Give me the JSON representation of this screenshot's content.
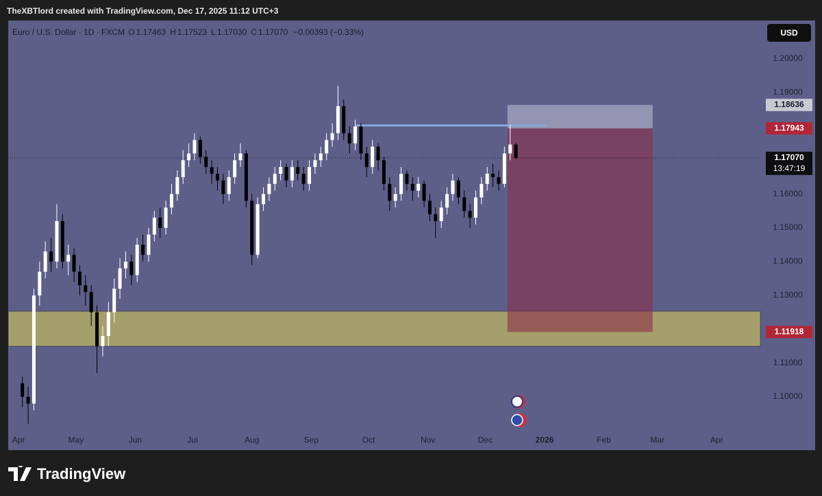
{
  "header": {
    "attribution": "TheXBTlord created with TradingView.com, Dec 17, 2025 11:12 UTC+3",
    "symbol": "Euro / U.S. Dollar · 1D · FXCM",
    "ohlc": [
      {
        "key": "O",
        "value": "1.17463"
      },
      {
        "key": "H",
        "value": "1.17523"
      },
      {
        "key": "L",
        "value": "1.17030"
      },
      {
        "key": "C",
        "value": "1.17070"
      }
    ],
    "change": "−0.00393 (−0.33%)",
    "currency": "USD"
  },
  "footer": {
    "brand": "TradingView"
  },
  "chart_data": {
    "type": "candlestick",
    "up_color": "#ffffff",
    "down_color": "#000000",
    "x": [
      2,
      5,
      8,
      11,
      14,
      17,
      20,
      23,
      26,
      29,
      32,
      35,
      38,
      41,
      44,
      47,
      50,
      53,
      56,
      59,
      62,
      65,
      68,
      71,
      74,
      77,
      80,
      83,
      86,
      89,
      92,
      95,
      98,
      101,
      104,
      107,
      110,
      113,
      116,
      119,
      122,
      125,
      128,
      131,
      134,
      137,
      140,
      143,
      146,
      149,
      152,
      155,
      158,
      161,
      164,
      167,
      170,
      173,
      176,
      179,
      182,
      185,
      188,
      191,
      194,
      197,
      200,
      203,
      206,
      209,
      212,
      215,
      218,
      221,
      224,
      227,
      230,
      233,
      236,
      239,
      242,
      245,
      248,
      251,
      254,
      257,
      260
    ],
    "open": [
      1.104,
      1.1,
      1.098,
      1.13,
      1.137,
      1.143,
      1.14,
      1.152,
      1.14,
      1.142,
      1.137,
      1.133,
      1.131,
      1.125,
      1.115,
      1.118,
      1.125,
      1.132,
      1.138,
      1.14,
      1.136,
      1.145,
      1.142,
      1.148,
      1.153,
      1.15,
      1.156,
      1.16,
      1.165,
      1.17,
      1.172,
      1.176,
      1.171,
      1.168,
      1.166,
      1.164,
      1.16,
      1.165,
      1.17,
      1.172,
      1.158,
      1.142,
      1.157,
      1.16,
      1.163,
      1.166,
      1.168,
      1.164,
      1.168,
      1.166,
      1.163,
      1.168,
      1.17,
      1.172,
      1.176,
      1.178,
      1.186,
      1.178,
      1.175,
      1.18,
      1.172,
      1.168,
      1.174,
      1.17,
      1.163,
      1.158,
      1.16,
      1.166,
      1.163,
      1.161,
      1.163,
      1.158,
      1.154,
      1.152,
      1.156,
      1.16,
      1.164,
      1.159,
      1.155,
      1.153,
      1.159,
      1.163,
      1.166,
      1.165,
      1.163,
      1.172,
      1.17463
    ],
    "high": [
      1.106,
      1.103,
      1.132,
      1.14,
      1.146,
      1.147,
      1.157,
      1.154,
      1.145,
      1.144,
      1.139,
      1.136,
      1.133,
      1.127,
      1.121,
      1.128,
      1.135,
      1.141,
      1.143,
      1.142,
      1.147,
      1.148,
      1.15,
      1.155,
      1.156,
      1.158,
      1.163,
      1.167,
      1.173,
      1.175,
      1.178,
      1.177,
      1.173,
      1.17,
      1.168,
      1.166,
      1.167,
      1.172,
      1.175,
      1.173,
      1.16,
      1.159,
      1.162,
      1.165,
      1.168,
      1.17,
      1.169,
      1.17,
      1.17,
      1.168,
      1.17,
      1.172,
      1.174,
      1.178,
      1.181,
      1.192,
      1.188,
      1.18,
      1.182,
      1.181,
      1.174,
      1.176,
      1.175,
      1.171,
      1.165,
      1.162,
      1.168,
      1.167,
      1.165,
      1.165,
      1.164,
      1.16,
      1.156,
      1.158,
      1.162,
      1.166,
      1.165,
      1.161,
      1.157,
      1.161,
      1.165,
      1.168,
      1.169,
      1.167,
      1.174,
      1.1805,
      1.17523
    ],
    "low": [
      1.097,
      1.092,
      1.096,
      1.127,
      1.135,
      1.137,
      1.138,
      1.138,
      1.136,
      1.134,
      1.13,
      1.127,
      1.121,
      1.107,
      1.112,
      1.115,
      1.122,
      1.129,
      1.135,
      1.133,
      1.134,
      1.14,
      1.14,
      1.146,
      1.147,
      1.148,
      1.154,
      1.158,
      1.163,
      1.168,
      1.17,
      1.169,
      1.166,
      1.163,
      1.161,
      1.157,
      1.158,
      1.163,
      1.168,
      1.156,
      1.139,
      1.141,
      1.155,
      1.158,
      1.161,
      1.164,
      1.162,
      1.162,
      1.164,
      1.161,
      1.161,
      1.166,
      1.168,
      1.17,
      1.174,
      1.176,
      1.176,
      1.172,
      1.173,
      1.17,
      1.165,
      1.166,
      1.167,
      1.161,
      1.155,
      1.156,
      1.158,
      1.161,
      1.158,
      1.159,
      1.156,
      1.152,
      1.147,
      1.15,
      1.154,
      1.158,
      1.157,
      1.153,
      1.15,
      1.151,
      1.157,
      1.161,
      1.162,
      1.161,
      1.162,
      1.17,
      1.1703
    ],
    "close": [
      1.1,
      1.098,
      1.13,
      1.137,
      1.143,
      1.14,
      1.152,
      1.14,
      1.142,
      1.137,
      1.133,
      1.131,
      1.125,
      1.115,
      1.118,
      1.125,
      1.132,
      1.138,
      1.14,
      1.136,
      1.145,
      1.142,
      1.148,
      1.153,
      1.15,
      1.156,
      1.16,
      1.165,
      1.17,
      1.172,
      1.176,
      1.171,
      1.168,
      1.166,
      1.164,
      1.16,
      1.165,
      1.17,
      1.172,
      1.158,
      1.142,
      1.157,
      1.16,
      1.163,
      1.166,
      1.168,
      1.164,
      1.168,
      1.166,
      1.163,
      1.168,
      1.17,
      1.172,
      1.176,
      1.178,
      1.186,
      1.178,
      1.175,
      1.18,
      1.172,
      1.168,
      1.174,
      1.17,
      1.163,
      1.158,
      1.16,
      1.166,
      1.163,
      1.161,
      1.163,
      1.158,
      1.154,
      1.152,
      1.156,
      1.16,
      1.164,
      1.159,
      1.155,
      1.153,
      1.159,
      1.163,
      1.166,
      1.165,
      1.163,
      1.172,
      1.17463,
      1.1707
    ],
    "xlim": [
      -5.4,
      387.8
    ],
    "xticks": [
      {
        "value": 0,
        "label": "Apr"
      },
      {
        "value": 30,
        "label": "May"
      },
      {
        "value": 61,
        "label": "Jun"
      },
      {
        "value": 91,
        "label": "Jul"
      },
      {
        "value": 122,
        "label": "Aug"
      },
      {
        "value": 153,
        "label": "Sep"
      },
      {
        "value": 183,
        "label": "Oct"
      },
      {
        "value": 214,
        "label": "Nov"
      },
      {
        "value": 244,
        "label": "Dec"
      },
      {
        "value": 275,
        "label": "2026"
      },
      {
        "value": 306,
        "label": "Feb"
      },
      {
        "value": 334,
        "label": "Mar"
      },
      {
        "value": 365,
        "label": "Apr"
      }
    ],
    "ylim": [
      1.08421,
      1.21134
    ],
    "yticks": [
      {
        "value": 1.1,
        "label": "1.10000"
      },
      {
        "value": 1.11,
        "label": "1.11000"
      },
      {
        "value": 1.13,
        "label": "1.13000"
      },
      {
        "value": 1.14,
        "label": "1.14000"
      },
      {
        "value": 1.15,
        "label": "1.15000"
      },
      {
        "value": 1.16,
        "label": "1.16000"
      },
      {
        "value": 1.19,
        "label": "1.19000"
      },
      {
        "value": 1.2,
        "label": "1.20000"
      }
    ],
    "grid": false,
    "zone": {
      "low": 1.11498,
      "high": 1.1253,
      "color": "#a59f6b"
    },
    "level_line": {
      "value": 1.1803,
      "start": 176.5,
      "end": 276,
      "color": "#86a9d8"
    },
    "position": {
      "start": 255.6,
      "end": 331.5,
      "stop": {
        "value": 1.18636,
        "label": "1.18636"
      },
      "entry": {
        "value": 1.17943,
        "label": "1.17943"
      },
      "target": {
        "value": 1.11918,
        "label": "1.11918"
      },
      "stop_color": "#9d9fba",
      "target_color": "#8c2e4a"
    },
    "last_price": {
      "value": 1.1707,
      "label": "1.17070",
      "countdown": "13:47:19"
    }
  }
}
